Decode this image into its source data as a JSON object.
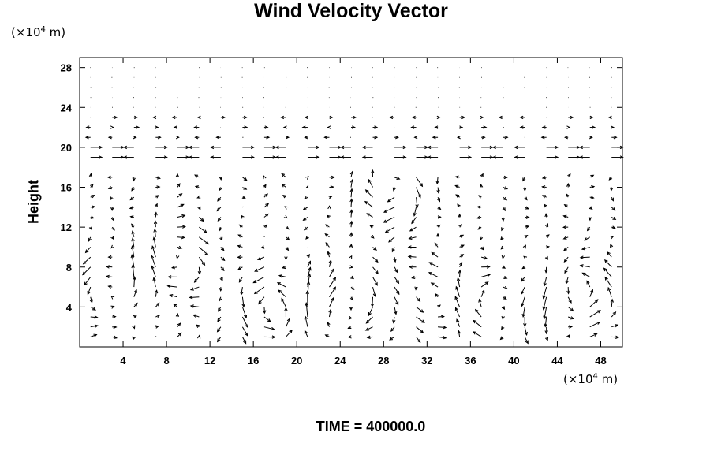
{
  "chart_data": {
    "type": "quiver",
    "title": "Wind Velocity Vector",
    "ylabel": "Height",
    "y_unit": {
      "prefix": "(×10",
      "power": "4",
      "suffix": " m)"
    },
    "x_unit": {
      "prefix": "(×10",
      "power": "4",
      "suffix": " m)"
    },
    "xlim": [
      0,
      50
    ],
    "ylim": [
      0,
      29
    ],
    "x_ticks": [
      4,
      8,
      12,
      16,
      20,
      24,
      28,
      32,
      36,
      40,
      44,
      48
    ],
    "y_ticks": [
      4,
      8,
      12,
      16,
      20,
      24,
      28
    ],
    "grid_spacing": {
      "dx": 2,
      "dy": 1
    },
    "field": {
      "upper": "weak, mostly horizontal vectors above ~22 (x10^4 m); near-zero dots above 24",
      "shear_layer": "strong horizontal vectors near height 19-20",
      "lower": "large rotating eddies below height ~12 with strongest vectors near the surface",
      "eddy_centers": [
        [
          4,
          6
        ],
        [
          9,
          8
        ],
        [
          18,
          4
        ],
        [
          25,
          4
        ],
        [
          33,
          5
        ],
        [
          37,
          5
        ],
        [
          46,
          5
        ],
        [
          28,
          16
        ]
      ]
    }
  },
  "footer": {
    "time_label": "TIME = 400000.0"
  }
}
